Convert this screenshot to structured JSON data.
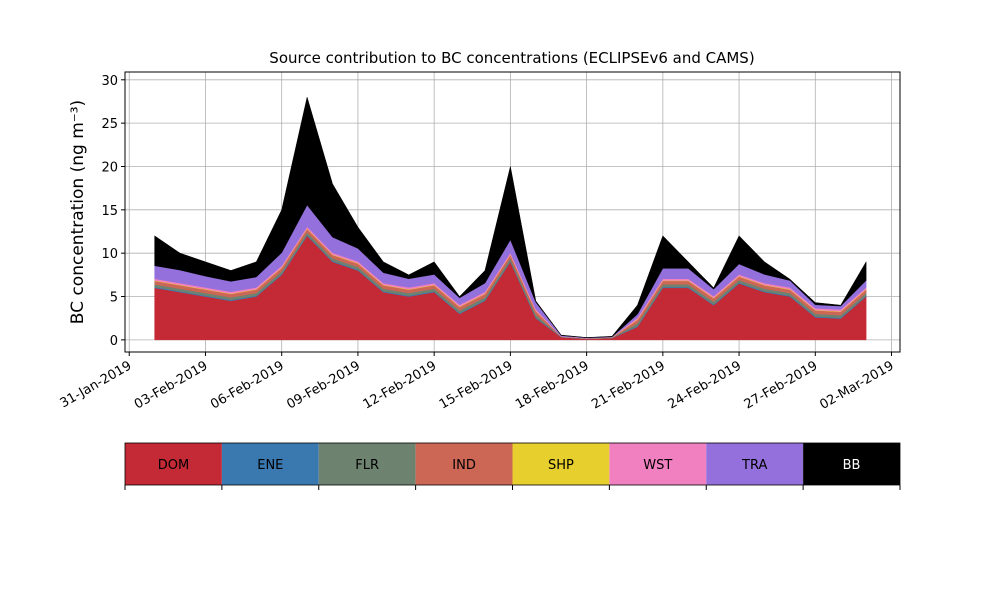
{
  "chart_data": {
    "type": "stacked_area",
    "title": "Source contribution to BC concentrations (ECLIPSEv6 and CAMS)",
    "y_label": "BC concentration (ng m⁻³)",
    "x": [
      "2019-02-01",
      "2019-02-02",
      "2019-02-03",
      "2019-02-04",
      "2019-02-05",
      "2019-02-06",
      "2019-02-07",
      "2019-02-08",
      "2019-02-09",
      "2019-02-10",
      "2019-02-11",
      "2019-02-12",
      "2019-02-13",
      "2019-02-14",
      "2019-02-15",
      "2019-02-16",
      "2019-02-17",
      "2019-02-18",
      "2019-02-19",
      "2019-02-20",
      "2019-02-21",
      "2019-02-22",
      "2019-02-23",
      "2019-02-24",
      "2019-02-25",
      "2019-02-26",
      "2019-02-27",
      "2019-02-28",
      "2019-03-01"
    ],
    "series": [
      {
        "name": "DOM",
        "color": "#c42a35",
        "values": [
          6,
          5.5,
          5,
          4.5,
          5,
          7.5,
          12,
          9,
          8,
          5.5,
          5,
          5.5,
          3,
          4.5,
          9,
          2.5,
          0.3,
          0.1,
          0.2,
          1.5,
          6,
          6,
          4,
          6.5,
          5.5,
          5,
          2.6,
          2.45,
          5
        ]
      },
      {
        "name": "ENE",
        "color": "#3a78b0",
        "values": [
          0.1,
          0.1,
          0.1,
          0.1,
          0.1,
          0.1,
          0.1,
          0.1,
          0.1,
          0.1,
          0.1,
          0.1,
          0.1,
          0.1,
          0.1,
          0.1,
          0.02,
          0.02,
          0.02,
          0.1,
          0.1,
          0.1,
          0.1,
          0.1,
          0.1,
          0.1,
          0.1,
          0.1,
          0.1
        ]
      },
      {
        "name": "FLR",
        "color": "#6e8270",
        "values": [
          0.3,
          0.3,
          0.3,
          0.3,
          0.3,
          0.3,
          0.3,
          0.3,
          0.3,
          0.3,
          0.3,
          0.3,
          0.3,
          0.3,
          0.3,
          0.3,
          0.02,
          0.02,
          0.02,
          0.3,
          0.3,
          0.3,
          0.3,
          0.3,
          0.3,
          0.3,
          0.3,
          0.3,
          0.3
        ]
      },
      {
        "name": "IND",
        "color": "#cc6655",
        "values": [
          0.4,
          0.4,
          0.4,
          0.4,
          0.4,
          0.4,
          0.4,
          0.4,
          0.4,
          0.4,
          0.4,
          0.4,
          0.4,
          0.4,
          0.4,
          0.4,
          0.03,
          0.03,
          0.03,
          0.4,
          0.4,
          0.4,
          0.4,
          0.4,
          0.4,
          0.4,
          0.4,
          0.4,
          0.4
        ]
      },
      {
        "name": "SHP",
        "color": "#e7cf2e",
        "values": [
          0.05,
          0.05,
          0.05,
          0.05,
          0.05,
          0.05,
          0.05,
          0.05,
          0.05,
          0.05,
          0.05,
          0.05,
          0.05,
          0.05,
          0.05,
          0.05,
          0.01,
          0.01,
          0.01,
          0.05,
          0.05,
          0.05,
          0.05,
          0.05,
          0.05,
          0.05,
          0.05,
          0.05,
          0.05
        ]
      },
      {
        "name": "WST",
        "color": "#f080c0",
        "values": [
          0.2,
          0.2,
          0.2,
          0.2,
          0.2,
          0.2,
          0.2,
          0.2,
          0.2,
          0.2,
          0.2,
          0.2,
          0.2,
          0.2,
          0.2,
          0.2,
          0.02,
          0.02,
          0.02,
          0.2,
          0.2,
          0.2,
          0.2,
          0.2,
          0.2,
          0.2,
          0.2,
          0.2,
          0.2
        ]
      },
      {
        "name": "TRA",
        "color": "#9370db",
        "values": [
          1.5,
          1.5,
          1.3,
          1.2,
          1.2,
          1.5,
          2.5,
          1.8,
          1.5,
          1.2,
          1,
          1,
          0.8,
          1,
          1.5,
          0.8,
          0.1,
          0.05,
          0.05,
          0.4,
          1.2,
          1.2,
          0.8,
          1.2,
          1,
          0.8,
          0.4,
          0.4,
          0.8
        ]
      },
      {
        "name": "BB",
        "color": "#000000",
        "values": [
          3.45,
          1.95,
          1.65,
          1.25,
          1.75,
          4.95,
          12.45,
          6.15,
          2.45,
          1.25,
          0.45,
          1.45,
          0.15,
          1.45,
          8.45,
          0.15,
          0.05,
          0.02,
          0.06,
          1.05,
          3.75,
          0.75,
          0.15,
          3.25,
          1.45,
          0.15,
          0.25,
          0.1,
          2.15
        ]
      }
    ],
    "xlim": [
      "2019-01-30T20:00",
      "2019-03-02T08:00"
    ],
    "xticks": [
      {
        "value": "2019-01-31",
        "label": "31-Jan-2019"
      },
      {
        "value": "2019-02-03",
        "label": "03-Feb-2019"
      },
      {
        "value": "2019-02-06",
        "label": "06-Feb-2019"
      },
      {
        "value": "2019-02-09",
        "label": "09-Feb-2019"
      },
      {
        "value": "2019-02-12",
        "label": "12-Feb-2019"
      },
      {
        "value": "2019-02-15",
        "label": "15-Feb-2019"
      },
      {
        "value": "2019-02-18",
        "label": "18-Feb-2019"
      },
      {
        "value": "2019-02-21",
        "label": "21-Feb-2019"
      },
      {
        "value": "2019-02-24",
        "label": "24-Feb-2019"
      },
      {
        "value": "2019-02-27",
        "label": "27-Feb-2019"
      },
      {
        "value": "2019-03-02",
        "label": "02-Mar-2019"
      }
    ],
    "ylim": [
      -1.4,
      30.9
    ],
    "yticks": [
      0,
      5,
      10,
      15,
      20,
      25,
      30
    ],
    "grid": true
  }
}
